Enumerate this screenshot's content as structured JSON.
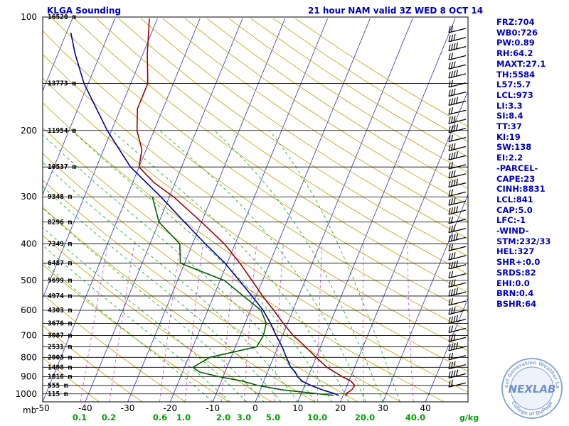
{
  "header": {
    "station_title": "KLGA Sounding",
    "model_title": "21 hour NAM valid 3Z WED  8 OCT 14"
  },
  "indices": [
    "FRZ:704",
    "WB0:726",
    "PW:0.89",
    "RH:64.2",
    "MAXT:27.1",
    "TH:5584",
    "L57:5.7",
    "LCL:973",
    "LI:3.3",
    "SI:8.4",
    "TT:37",
    "KI:19",
    "SW:138",
    "EI:2.2",
    "-PARCEL-",
    "CAPE:23",
    "CINH:8831",
    "LCL:841",
    "CAP:5.0",
    "LFC:-1",
    "-WIND-",
    "STM:232/33",
    "HEL:327",
    "SHR+:0.0",
    "SRDS:82",
    "EHI:0.0",
    "BRN:0.4",
    "BSHR:64"
  ],
  "logo": {
    "text": "NEXLAB",
    "ring_top": "Next Generation Weather Lab",
    "ring_bottom": "College of DuPage"
  },
  "colors": {
    "temperature": "#a00000",
    "dewpoint": "#006000",
    "wetbulb": "#0000a0",
    "isotherm": "#3030c0",
    "dry_adiabat": "#c0a000",
    "moist_adiabat": "#00b000",
    "mixing_ratio": "#e040e0",
    "isobar": "#000000",
    "label_blue": "#0000c0",
    "label_green": "#00a000"
  },
  "chart_data": {
    "type": "line",
    "chart_kind": "Skew-T log-P",
    "pressure_range": [
      1050,
      100
    ],
    "temperature_range": [
      -50,
      50
    ],
    "pressure_label": "mb",
    "pressure_ticks": [
      100,
      200,
      300,
      400,
      500,
      600,
      700,
      800,
      900,
      1000
    ],
    "temperature_ticks": [
      -50,
      -40,
      -30,
      -20,
      -10,
      0,
      10,
      20,
      30,
      40
    ],
    "mixing_ratio_ticks": [
      "0.1",
      "0.2",
      "0.6",
      "1.0",
      "2.0",
      "3.0",
      "5.0",
      "10.0",
      "20.0",
      "40.0"
    ],
    "mixing_ratio_unit": "g/kg",
    "height_labels": [
      {
        "p": 100,
        "label": "16520 m"
      },
      {
        "p": 150,
        "label": "13773 m"
      },
      {
        "p": 200,
        "label": "11954 m"
      },
      {
        "p": 250,
        "label": "10537 m"
      },
      {
        "p": 300,
        "label": "9348 m"
      },
      {
        "p": 350,
        "label": "8296 m"
      },
      {
        "p": 400,
        "label": "7349 m"
      },
      {
        "p": 450,
        "label": "6487 m"
      },
      {
        "p": 500,
        "label": "5699 m"
      },
      {
        "p": 550,
        "label": "4974 m"
      },
      {
        "p": 600,
        "label": "4303 m"
      },
      {
        "p": 650,
        "label": "3676 m"
      },
      {
        "p": 700,
        "label": "3087 m"
      },
      {
        "p": 750,
        "label": "2531 m"
      },
      {
        "p": 800,
        "label": "2003 m"
      },
      {
        "p": 850,
        "label": "1498 m"
      },
      {
        "p": 900,
        "label": "1016 m"
      },
      {
        "p": 950,
        "label": "555 m"
      },
      {
        "p": 1000,
        "label": "115 m"
      }
    ],
    "series": [
      {
        "key": "temperature",
        "points": [
          [
            1010,
            21
          ],
          [
            1000,
            20.5
          ],
          [
            975,
            21.5
          ],
          [
            950,
            21.8
          ],
          [
            925,
            20.5
          ],
          [
            900,
            18
          ],
          [
            850,
            13.5
          ],
          [
            800,
            10
          ],
          [
            750,
            6.5
          ],
          [
            700,
            2.5
          ],
          [
            650,
            -1
          ],
          [
            600,
            -4.5
          ],
          [
            550,
            -8.5
          ],
          [
            500,
            -12.5
          ],
          [
            450,
            -17
          ],
          [
            400,
            -22.5
          ],
          [
            350,
            -30
          ],
          [
            300,
            -39
          ],
          [
            275,
            -45
          ],
          [
            250,
            -50
          ],
          [
            225,
            -51
          ],
          [
            200,
            -54
          ],
          [
            175,
            -56
          ],
          [
            150,
            -56
          ],
          [
            125,
            -59
          ],
          [
            100,
            -62
          ]
        ]
      },
      {
        "key": "dewpoint",
        "points": [
          [
            1010,
            17.8
          ],
          [
            975,
            5
          ],
          [
            950,
            -1
          ],
          [
            925,
            -5
          ],
          [
            900,
            -11
          ],
          [
            875,
            -16
          ],
          [
            850,
            -18
          ],
          [
            800,
            -15
          ],
          [
            750,
            -5
          ],
          [
            700,
            -4.5
          ],
          [
            650,
            -5
          ],
          [
            600,
            -7.5
          ],
          [
            550,
            -13
          ],
          [
            500,
            -19
          ],
          [
            450,
            -31
          ],
          [
            400,
            -33
          ],
          [
            350,
            -40
          ],
          [
            300,
            -44
          ]
        ]
      },
      {
        "key": "wetbulb",
        "points": [
          [
            1010,
            19
          ],
          [
            1000,
            18
          ],
          [
            975,
            14.5
          ],
          [
            950,
            11.5
          ],
          [
            925,
            9
          ],
          [
            900,
            7.5
          ],
          [
            875,
            6.5
          ],
          [
            850,
            5
          ],
          [
            800,
            3
          ],
          [
            750,
            1
          ],
          [
            700,
            -1.5
          ],
          [
            650,
            -4
          ],
          [
            600,
            -7
          ],
          [
            550,
            -11
          ],
          [
            500,
            -15.5
          ],
          [
            450,
            -20.5
          ],
          [
            400,
            -27
          ],
          [
            350,
            -34
          ],
          [
            300,
            -42
          ],
          [
            250,
            -52
          ],
          [
            200,
            -61
          ],
          [
            150,
            -71
          ],
          [
            125,
            -76
          ],
          [
            110,
            -79
          ]
        ]
      }
    ]
  }
}
